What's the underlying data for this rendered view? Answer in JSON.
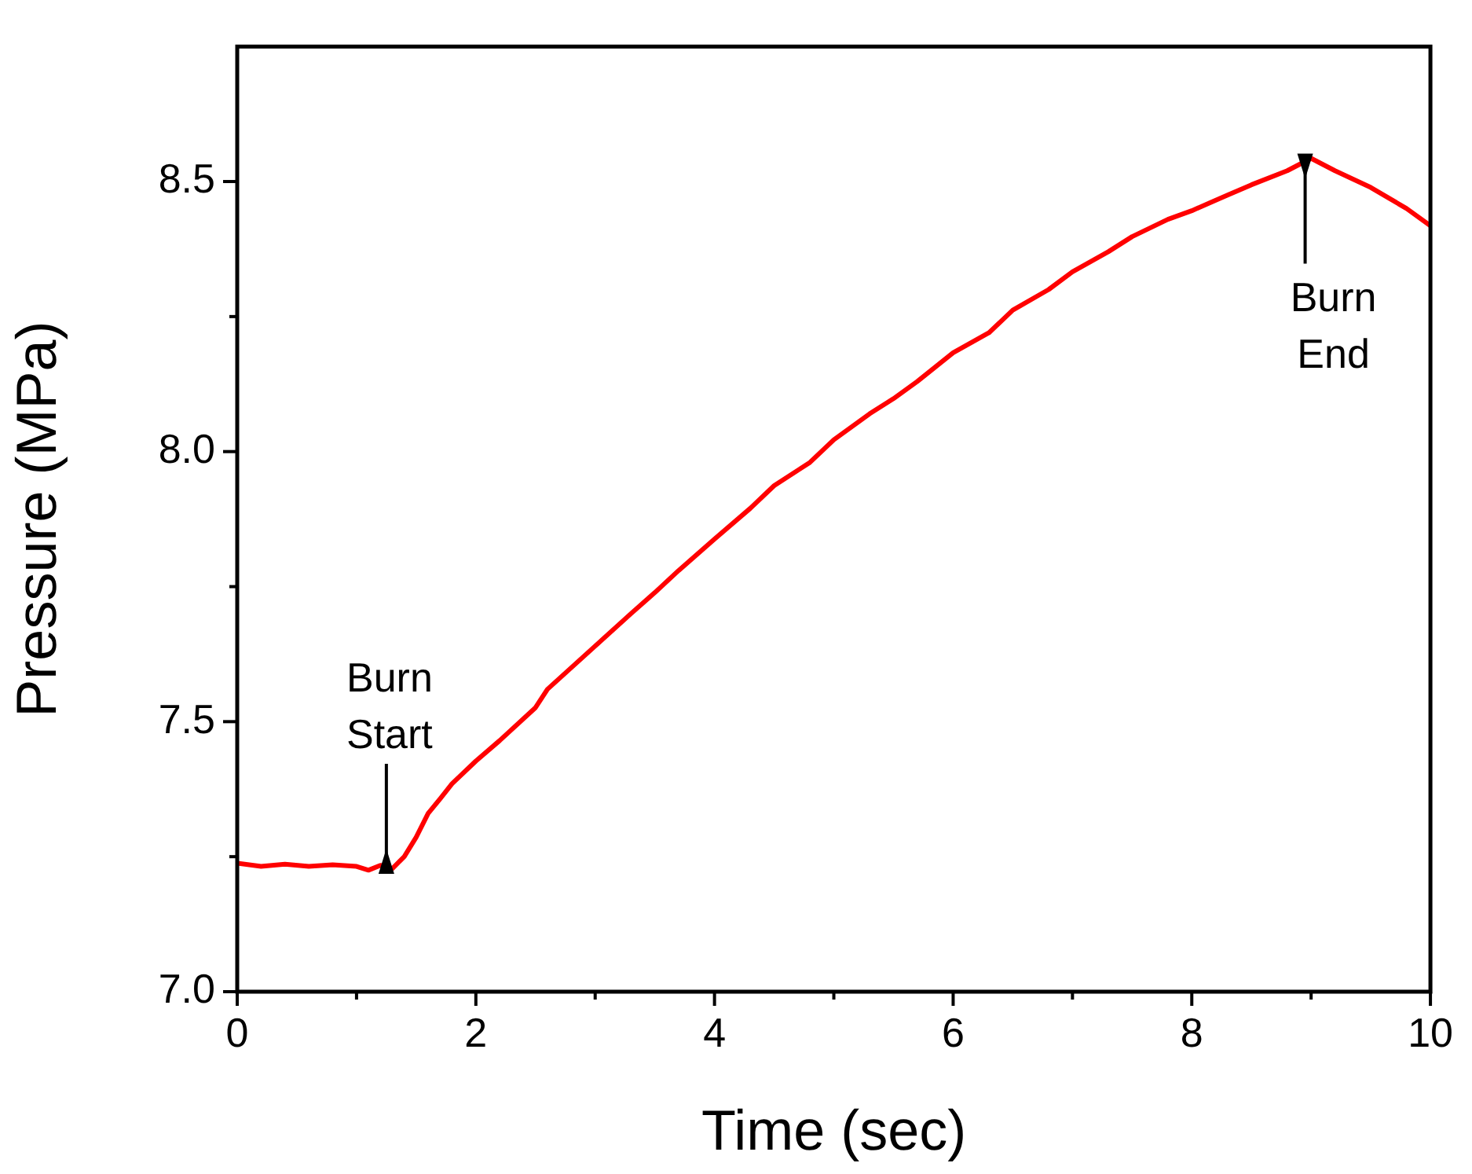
{
  "chart_data": {
    "type": "line",
    "xlabel": "Time (sec)",
    "ylabel": "Pressure (MPa)",
    "x": [
      0,
      0.2,
      0.4,
      0.6,
      0.8,
      1,
      1.1,
      1.2,
      1.3,
      1.4,
      1.5,
      1.6,
      1.7,
      1.8,
      2,
      2.2,
      2.5,
      2.6,
      2.7,
      3,
      3.3,
      3.5,
      3.7,
      4,
      4.3,
      4.5,
      4.8,
      5,
      5.3,
      5.5,
      5.7,
      6,
      6.3,
      6.5,
      6.8,
      7,
      7.3,
      7.5,
      7.8,
      8,
      8.3,
      8.5,
      8.8,
      9,
      9.2,
      9.5,
      9.8,
      10
    ],
    "series": [
      {
        "color": "#ff0000",
        "values": [
          7.238,
          7.232,
          7.236,
          7.232,
          7.235,
          7.232,
          7.225,
          7.234,
          7.228,
          7.25,
          7.286,
          7.33,
          7.357,
          7.385,
          7.427,
          7.465,
          7.526,
          7.56,
          7.58,
          7.64,
          7.7,
          7.739,
          7.78,
          7.838,
          7.895,
          7.937,
          7.98,
          8.022,
          8.07,
          8.098,
          8.13,
          8.183,
          8.22,
          8.262,
          8.3,
          8.333,
          8.37,
          8.398,
          8.43,
          8.446,
          8.475,
          8.494,
          8.52,
          8.543,
          8.52,
          8.489,
          8.45,
          8.418
        ]
      }
    ],
    "xlim": [
      0,
      10
    ],
    "xticks": [
      0,
      {
        "value": 1,
        "label": null
      },
      2,
      {
        "value": 3,
        "label": null
      },
      4,
      {
        "value": 5,
        "label": null
      },
      6,
      {
        "value": 7,
        "label": null
      },
      8,
      {
        "value": 9,
        "label": null
      },
      10
    ],
    "ylim": [
      7,
      8.75
    ],
    "yticks": [
      {
        "value": 7,
        "label": "7.0"
      },
      {
        "value": 7.25,
        "label": null
      },
      {
        "value": 7.5,
        "label": "7.5"
      },
      {
        "value": 7.75,
        "label": null
      },
      {
        "value": 8,
        "label": "8.0"
      },
      {
        "value": 8.25,
        "label": null
      },
      {
        "value": 8.5,
        "label": "8.5"
      }
    ],
    "annotations": [
      {
        "text": "Burn Start",
        "x": 1.25,
        "y": 7.23
      },
      {
        "text": "Burn End",
        "x": 8.95,
        "y": 8.54
      }
    ],
    "grid": false,
    "legend": false,
    "marker": "none",
    "line_style": "solid"
  }
}
